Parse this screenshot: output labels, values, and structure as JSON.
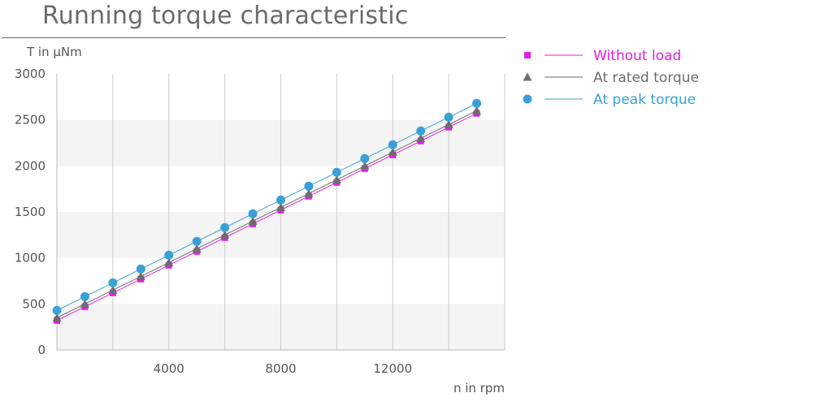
{
  "chart_data": {
    "type": "line",
    "title": "Running torque characteristic",
    "xlabel": "n in rpm",
    "ylabel": "T in µNm",
    "xlim": [
      0,
      16000
    ],
    "ylim": [
      0,
      3000
    ],
    "xticks": [
      "4000",
      "8000",
      "12000"
    ],
    "yticks": [
      "0",
      "500",
      "1000",
      "1500",
      "2000",
      "2500",
      "3000"
    ],
    "grid": "vertical lines with alternating horizontal bands",
    "legend_position": "right",
    "x": [
      0,
      1000,
      2000,
      3000,
      4000,
      5000,
      6000,
      7000,
      8000,
      9000,
      10000,
      11000,
      12000,
      13000,
      14000,
      15000
    ],
    "series": [
      {
        "name": "Without load",
        "color": "#e020e0",
        "marker": "square",
        "values": [
          320,
          470,
          620,
          770,
          920,
          1070,
          1220,
          1370,
          1520,
          1670,
          1820,
          1970,
          2120,
          2270,
          2420,
          2570
        ]
      },
      {
        "name": "At rated torque",
        "color": "#6d6d6d",
        "marker": "triangle",
        "values": [
          350,
          500,
          650,
          800,
          950,
          1100,
          1250,
          1400,
          1550,
          1700,
          1850,
          2000,
          2150,
          2300,
          2450,
          2600
        ]
      },
      {
        "name": "At peak torque",
        "color": "#3aa0d5",
        "marker": "circle",
        "values": [
          430,
          580,
          730,
          880,
          1030,
          1180,
          1330,
          1480,
          1630,
          1780,
          1930,
          2080,
          2230,
          2380,
          2530,
          2680
        ]
      }
    ]
  }
}
